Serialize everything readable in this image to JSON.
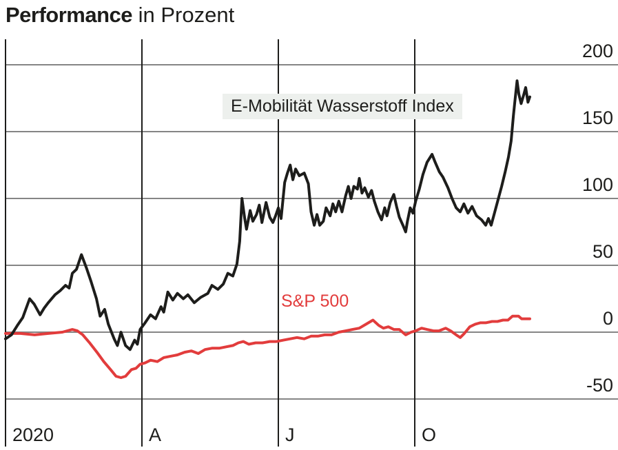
{
  "header": {
    "title_bold": "Performance",
    "title_rest": " in Prozent"
  },
  "chart_data": {
    "type": "line",
    "title": "Performance in Prozent",
    "xlabel": "",
    "ylabel": "Prozent",
    "ylim": [
      -75,
      220
    ],
    "grid": true,
    "legend_position": "inline-annotations",
    "colors": {
      "index_line": "#1d1d1b",
      "sp500_line": "#e23c3c",
      "h_gridline": "#858585",
      "v_gridline": "#1d1d1b",
      "index_label_bg": "#edf0ed",
      "text": "#1d1d1b"
    },
    "y_axis": {
      "ticks": [
        200,
        150,
        100,
        50,
        0,
        -50
      ],
      "side": "right"
    },
    "x_axis": {
      "ticks": [
        {
          "t": 0,
          "label": "2020"
        },
        {
          "t": 3,
          "label": "A"
        },
        {
          "t": 6,
          "label": "J"
        },
        {
          "t": 9,
          "label": "O"
        }
      ],
      "unit": "months since Jan 2020"
    },
    "series": [
      {
        "name": "E-Mobilität Wasserstoff Index",
        "color": "#1d1d1b",
        "points": [
          [
            0,
            -5
          ],
          [
            0.13,
            -2
          ],
          [
            0.26,
            5
          ],
          [
            0.38,
            11
          ],
          [
            0.53,
            25
          ],
          [
            0.63,
            21
          ],
          [
            0.76,
            13
          ],
          [
            0.85,
            18
          ],
          [
            0.94,
            22
          ],
          [
            1.09,
            28
          ],
          [
            1.2,
            31
          ],
          [
            1.32,
            35
          ],
          [
            1.4,
            33
          ],
          [
            1.47,
            44
          ],
          [
            1.56,
            47
          ],
          [
            1.67,
            58
          ],
          [
            1.78,
            48
          ],
          [
            1.88,
            38
          ],
          [
            2.0,
            25
          ],
          [
            2.08,
            12
          ],
          [
            2.18,
            17
          ],
          [
            2.26,
            6
          ],
          [
            2.39,
            -5
          ],
          [
            2.46,
            -10
          ],
          [
            2.54,
            0
          ],
          [
            2.64,
            -10
          ],
          [
            2.74,
            -13
          ],
          [
            2.84,
            -6
          ],
          [
            2.9,
            -9
          ],
          [
            2.96,
            2
          ],
          [
            3.07,
            7
          ],
          [
            3.19,
            13
          ],
          [
            3.3,
            10
          ],
          [
            3.42,
            19
          ],
          [
            3.48,
            15
          ],
          [
            3.57,
            30
          ],
          [
            3.68,
            24
          ],
          [
            3.78,
            29
          ],
          [
            3.91,
            25
          ],
          [
            4.01,
            28
          ],
          [
            4.15,
            22
          ],
          [
            4.29,
            26
          ],
          [
            4.45,
            29
          ],
          [
            4.54,
            35
          ],
          [
            4.67,
            32
          ],
          [
            4.79,
            36
          ],
          [
            4.89,
            44
          ],
          [
            5.0,
            42
          ],
          [
            5.09,
            51
          ],
          [
            5.15,
            68
          ],
          [
            5.2,
            100
          ],
          [
            5.26,
            85
          ],
          [
            5.3,
            77
          ],
          [
            5.38,
            91
          ],
          [
            5.44,
            83
          ],
          [
            5.52,
            88
          ],
          [
            5.58,
            95
          ],
          [
            5.64,
            82
          ],
          [
            5.73,
            97
          ],
          [
            5.81,
            86
          ],
          [
            5.88,
            82
          ],
          [
            5.94,
            87
          ],
          [
            6.0,
            93
          ],
          [
            6.06,
            85
          ],
          [
            6.14,
            112
          ],
          [
            6.2,
            119
          ],
          [
            6.26,
            125
          ],
          [
            6.32,
            114
          ],
          [
            6.38,
            122
          ],
          [
            6.46,
            117
          ],
          [
            6.57,
            119
          ],
          [
            6.66,
            111
          ],
          [
            6.72,
            90
          ],
          [
            6.79,
            80
          ],
          [
            6.85,
            88
          ],
          [
            6.91,
            80
          ],
          [
            6.99,
            83
          ],
          [
            7.05,
            93
          ],
          [
            7.14,
            87
          ],
          [
            7.2,
            96
          ],
          [
            7.26,
            90
          ],
          [
            7.33,
            98
          ],
          [
            7.4,
            90
          ],
          [
            7.48,
            102
          ],
          [
            7.54,
            109
          ],
          [
            7.6,
            100
          ],
          [
            7.66,
            109
          ],
          [
            7.74,
            107
          ],
          [
            7.78,
            115
          ],
          [
            7.84,
            104
          ],
          [
            7.9,
            108
          ],
          [
            7.98,
            101
          ],
          [
            8.05,
            106
          ],
          [
            8.11,
            98
          ],
          [
            8.19,
            90
          ],
          [
            8.27,
            84
          ],
          [
            8.34,
            93
          ],
          [
            8.39,
            87
          ],
          [
            8.46,
            97
          ],
          [
            8.54,
            103
          ],
          [
            8.6,
            94
          ],
          [
            8.66,
            86
          ],
          [
            8.74,
            80
          ],
          [
            8.8,
            75
          ],
          [
            8.84,
            83
          ],
          [
            8.9,
            93
          ],
          [
            8.96,
            89
          ],
          [
            9.02,
            98
          ],
          [
            9.1,
            107
          ],
          [
            9.18,
            118
          ],
          [
            9.27,
            127
          ],
          [
            9.38,
            133
          ],
          [
            9.45,
            127
          ],
          [
            9.54,
            120
          ],
          [
            9.62,
            116
          ],
          [
            9.73,
            108
          ],
          [
            9.82,
            100
          ],
          [
            9.91,
            93
          ],
          [
            10.0,
            90
          ],
          [
            10.08,
            96
          ],
          [
            10.17,
            89
          ],
          [
            10.26,
            94
          ],
          [
            10.36,
            87
          ],
          [
            10.47,
            84
          ],
          [
            10.56,
            80
          ],
          [
            10.62,
            85
          ],
          [
            10.68,
            80
          ],
          [
            10.76,
            90
          ],
          [
            10.84,
            100
          ],
          [
            10.91,
            109
          ],
          [
            10.99,
            120
          ],
          [
            11.06,
            131
          ],
          [
            11.12,
            143
          ],
          [
            11.17,
            162
          ],
          [
            11.2,
            172
          ],
          [
            11.25,
            188
          ],
          [
            11.29,
            178
          ],
          [
            11.34,
            171
          ],
          [
            11.4,
            178
          ],
          [
            11.44,
            183
          ],
          [
            11.49,
            172
          ],
          [
            11.53,
            176
          ]
        ]
      },
      {
        "name": "S&P 500",
        "color": "#e23c3c",
        "points": [
          [
            0,
            -1
          ],
          [
            0.33,
            -1
          ],
          [
            0.64,
            -2
          ],
          [
            0.94,
            -1
          ],
          [
            1.25,
            0
          ],
          [
            1.47,
            2
          ],
          [
            1.58,
            1
          ],
          [
            1.7,
            -2
          ],
          [
            1.85,
            -8
          ],
          [
            2.01,
            -15
          ],
          [
            2.16,
            -22
          ],
          [
            2.31,
            -28
          ],
          [
            2.43,
            -33
          ],
          [
            2.54,
            -34
          ],
          [
            2.64,
            -33
          ],
          [
            2.77,
            -28
          ],
          [
            2.87,
            -27
          ],
          [
            2.96,
            -24
          ],
          [
            3.07,
            -23
          ],
          [
            3.19,
            -21
          ],
          [
            3.34,
            -22
          ],
          [
            3.48,
            -19
          ],
          [
            3.63,
            -18
          ],
          [
            3.78,
            -17
          ],
          [
            3.94,
            -15
          ],
          [
            4.09,
            -14
          ],
          [
            4.24,
            -16
          ],
          [
            4.39,
            -13
          ],
          [
            4.54,
            -12
          ],
          [
            4.7,
            -12
          ],
          [
            4.85,
            -11
          ],
          [
            5.0,
            -10
          ],
          [
            5.12,
            -8
          ],
          [
            5.23,
            -7
          ],
          [
            5.35,
            -9
          ],
          [
            5.5,
            -8
          ],
          [
            5.65,
            -8
          ],
          [
            5.81,
            -7
          ],
          [
            5.96,
            -7
          ],
          [
            6.11,
            -6
          ],
          [
            6.26,
            -5
          ],
          [
            6.41,
            -4
          ],
          [
            6.57,
            -5
          ],
          [
            6.72,
            -3
          ],
          [
            6.87,
            -3
          ],
          [
            7.02,
            -2
          ],
          [
            7.17,
            -2
          ],
          [
            7.33,
            0
          ],
          [
            7.48,
            1
          ],
          [
            7.63,
            2
          ],
          [
            7.78,
            3
          ],
          [
            7.93,
            6
          ],
          [
            8.08,
            9
          ],
          [
            8.21,
            5
          ],
          [
            8.31,
            3
          ],
          [
            8.42,
            4
          ],
          [
            8.54,
            2
          ],
          [
            8.66,
            2
          ],
          [
            8.8,
            -2
          ],
          [
            8.92,
            0
          ],
          [
            9.02,
            1
          ],
          [
            9.15,
            3
          ],
          [
            9.27,
            2
          ],
          [
            9.41,
            1
          ],
          [
            9.53,
            1
          ],
          [
            9.68,
            3
          ],
          [
            9.79,
            1
          ],
          [
            9.91,
            -2
          ],
          [
            10.0,
            -4
          ],
          [
            10.09,
            -1
          ],
          [
            10.21,
            4
          ],
          [
            10.33,
            6
          ],
          [
            10.44,
            7
          ],
          [
            10.56,
            7
          ],
          [
            10.7,
            8
          ],
          [
            10.82,
            8
          ],
          [
            10.94,
            9
          ],
          [
            11.05,
            9
          ],
          [
            11.15,
            12
          ],
          [
            11.28,
            12
          ],
          [
            11.35,
            10
          ],
          [
            11.46,
            10
          ],
          [
            11.53,
            10
          ]
        ]
      }
    ]
  }
}
